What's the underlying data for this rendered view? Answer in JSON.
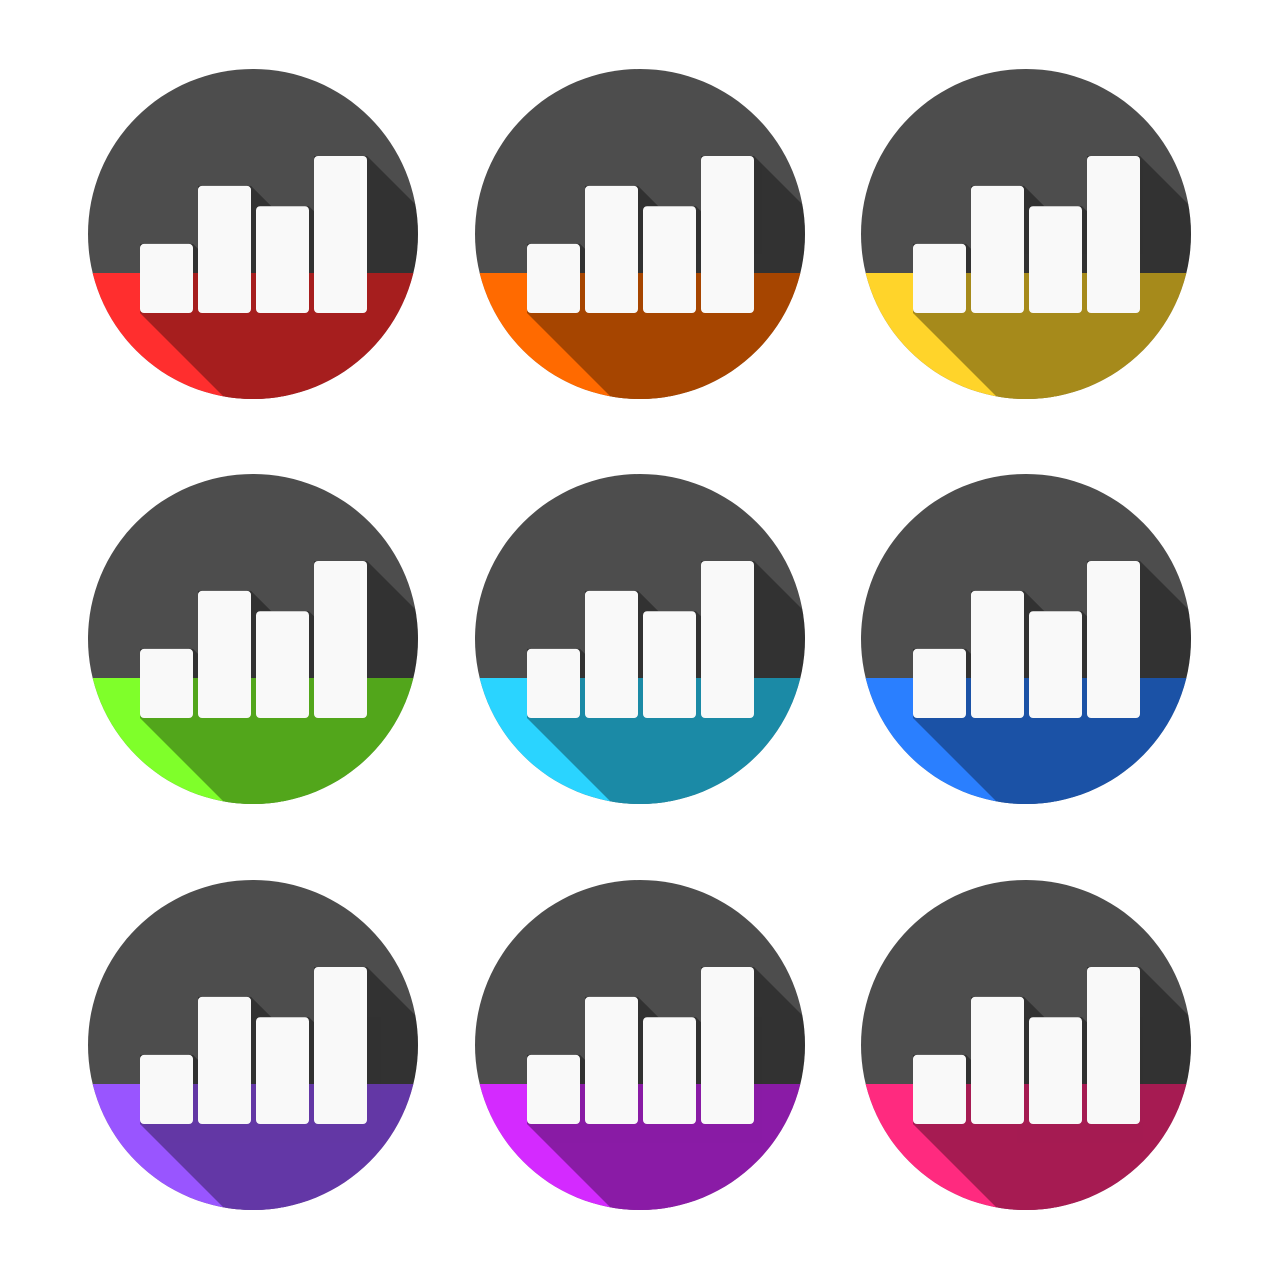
{
  "icon_set": {
    "icon_name": "bar-chart-icon",
    "top_color": "#4d4d4d",
    "bar_color": "#f9f9f9",
    "relative_bar_heights": [
      0.44,
      0.81,
      0.68,
      1.0
    ],
    "icons": [
      {
        "name": "red",
        "color": "#ff2e2e"
      },
      {
        "name": "orange",
        "color": "#ff6a00"
      },
      {
        "name": "yellow",
        "color": "#ffd42a"
      },
      {
        "name": "green",
        "color": "#7fff2a"
      },
      {
        "name": "cyan",
        "color": "#2ad4ff"
      },
      {
        "name": "blue",
        "color": "#2a7fff"
      },
      {
        "name": "purple",
        "color": "#9955ff"
      },
      {
        "name": "magenta",
        "color": "#d42aff"
      },
      {
        "name": "pink",
        "color": "#ff2a7f"
      }
    ]
  }
}
